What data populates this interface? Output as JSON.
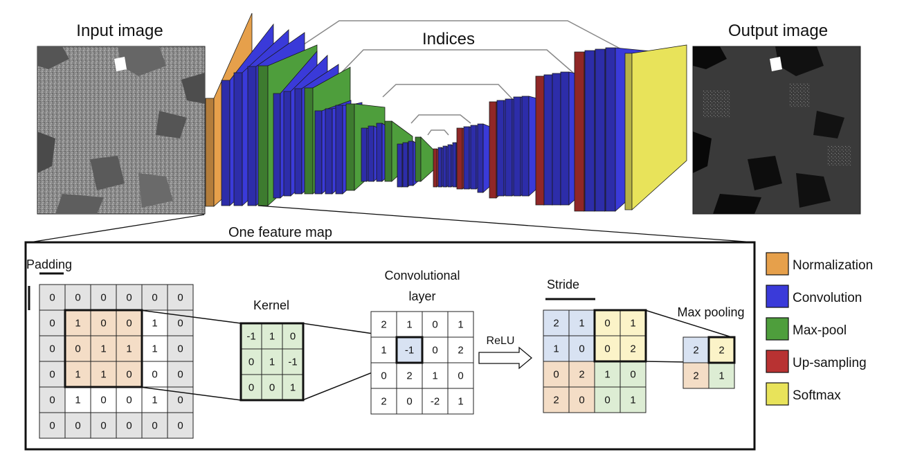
{
  "titles": {
    "input": "Input image",
    "output": "Output image",
    "indices": "Indices",
    "feature_map": "One feature map"
  },
  "legend": [
    {
      "label": "Normalization",
      "color": "#E6A04B"
    },
    {
      "label": "Convolution",
      "color": "#3A3AD9"
    },
    {
      "label": "Max-pool",
      "color": "#4E9E3C"
    },
    {
      "label": "Up-sampling",
      "color": "#B83232"
    },
    {
      "label": "Softmax",
      "color": "#E8E35A"
    }
  ],
  "colors": {
    "padding_cell": "#E3E3E3",
    "kernel_window": "#F4DDC6",
    "kernel": "#DDEDD4",
    "pool_blue": "#D8E2F2",
    "pool_yellow": "#FBF3C8",
    "pool_peach": "#F4DDC6",
    "pool_green": "#DDEDD4"
  },
  "padding": {
    "label": "Padding",
    "grid": [
      [
        "0",
        "0",
        "0",
        "0",
        "0",
        "0"
      ],
      [
        "0",
        "1",
        "0",
        "0",
        "1",
        "0"
      ],
      [
        "0",
        "0",
        "1",
        "1",
        "1",
        "0"
      ],
      [
        "0",
        "1",
        "1",
        "0",
        "0",
        "0"
      ],
      [
        "0",
        "1",
        "0",
        "0",
        "1",
        "0"
      ],
      [
        "0",
        "0",
        "0",
        "0",
        "0",
        "0"
      ]
    ]
  },
  "kernel": {
    "label": "Kernel",
    "grid": [
      [
        "-1",
        "1",
        "0"
      ],
      [
        "0",
        "1",
        "-1"
      ],
      [
        "0",
        "0",
        "1"
      ]
    ]
  },
  "conv_layer": {
    "label_line1": "Convolutional",
    "label_line2": "layer",
    "grid": [
      [
        "2",
        "1",
        "0",
        "1"
      ],
      [
        "1",
        "-1",
        "0",
        "2"
      ],
      [
        "0",
        "2",
        "1",
        "0"
      ],
      [
        "2",
        "0",
        "-2",
        "1"
      ]
    ]
  },
  "relu_label": "ReLU",
  "stride": {
    "label": "Stride",
    "grid": [
      [
        "2",
        "1",
        "0",
        "1"
      ],
      [
        "1",
        "0",
        "0",
        "2"
      ],
      [
        "0",
        "2",
        "1",
        "0"
      ],
      [
        "2",
        "0",
        "0",
        "1"
      ]
    ]
  },
  "maxpool": {
    "label": "Max pooling",
    "grid": [
      [
        "2",
        "2"
      ],
      [
        "2",
        "1"
      ]
    ]
  }
}
